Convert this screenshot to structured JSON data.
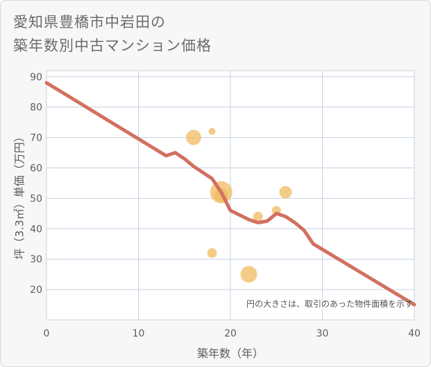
{
  "title": {
    "line1": "愛知県豊橋市中岩田の",
    "line2": "築年数別中古マンション価格"
  },
  "colors": {
    "background": "#f7f7f7",
    "plot_background": "#ffffff",
    "grid": "#c6d2e2",
    "trend_line": "#d27060",
    "bubble": "#f0b85a"
  },
  "chart_data": {
    "type": "scatter",
    "xlabel": "築年数（年）",
    "ylabel": "坪（3.3㎡）単価（万円）",
    "xlim": [
      0,
      40
    ],
    "ylim": [
      10,
      92
    ],
    "xticks": [
      0,
      10,
      20,
      30,
      40
    ],
    "yticks": [
      20,
      30,
      40,
      50,
      60,
      70,
      80,
      90
    ],
    "annotation": "円の大きさは、取引のあった物件面積を示す",
    "bubbles": [
      {
        "x": 16,
        "y": 70,
        "size": 2.2
      },
      {
        "x": 18,
        "y": 72,
        "size": 1.0
      },
      {
        "x": 18,
        "y": 32,
        "size": 1.4
      },
      {
        "x": 19,
        "y": 52,
        "size": 3.2
      },
      {
        "x": 19,
        "y": 51,
        "size": 2.0
      },
      {
        "x": 22,
        "y": 25,
        "size": 2.4
      },
      {
        "x": 23,
        "y": 44,
        "size": 1.4
      },
      {
        "x": 25,
        "y": 46,
        "size": 1.3
      },
      {
        "x": 26,
        "y": 52,
        "size": 1.8
      }
    ],
    "series": [
      {
        "name": "trend",
        "x": [
          0,
          13,
          14,
          15,
          16,
          17,
          18,
          19,
          20,
          21,
          22,
          23,
          24,
          25,
          26,
          27,
          28,
          29,
          40
        ],
        "y": [
          88,
          64,
          65,
          63,
          60.5,
          58.5,
          56.5,
          52,
          46,
          44.5,
          43,
          42,
          42.5,
          45,
          44,
          42,
          39.5,
          35,
          15
        ]
      }
    ]
  }
}
